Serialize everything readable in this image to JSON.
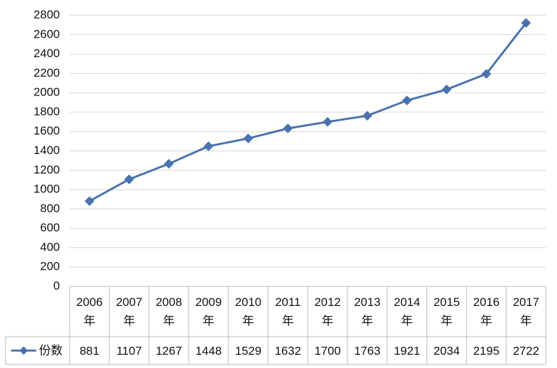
{
  "chart_data": {
    "type": "line",
    "categories": [
      "2006年",
      "2007年",
      "2008年",
      "2009年",
      "2010年",
      "2011年",
      "2012年",
      "2013年",
      "2014年",
      "2015年",
      "2016年",
      "2017年"
    ],
    "series": [
      {
        "name": "份数",
        "color": "#4a73ae",
        "values": [
          881,
          1107,
          1267,
          1448,
          1529,
          1632,
          1700,
          1763,
          1921,
          2034,
          2195,
          2722
        ]
      }
    ],
    "ylim": [
      0,
      2800
    ],
    "yticks": [
      0,
      200,
      400,
      600,
      800,
      1000,
      1200,
      1400,
      1600,
      1800,
      2000,
      2200,
      2400,
      2600,
      2800
    ],
    "grid": true
  }
}
